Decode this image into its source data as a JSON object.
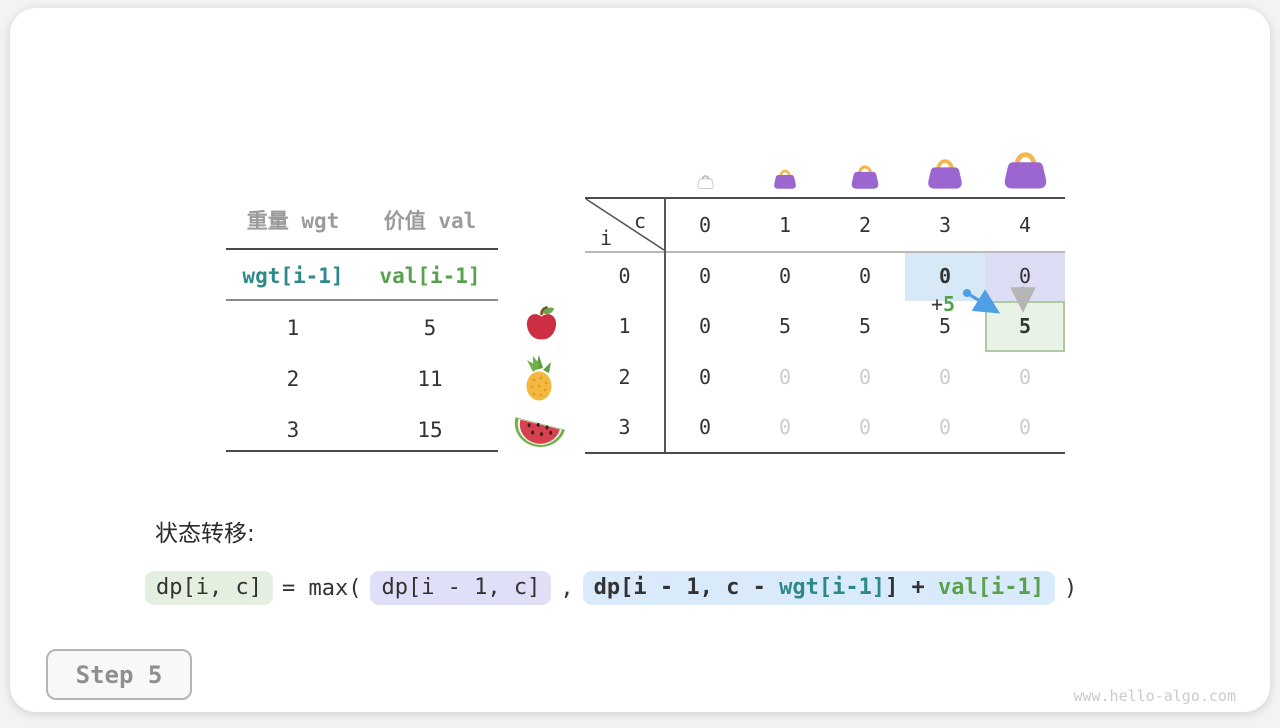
{
  "figure": {
    "step_label": "Step 5",
    "watermark": "www.hello-algo.com",
    "transition_label": "状态转移:"
  },
  "items_table": {
    "headers": [
      "重量 wgt",
      "价值 val"
    ],
    "code_row": [
      "wgt[i-1]",
      "val[i-1]"
    ],
    "rows": [
      [
        "1",
        "5"
      ],
      [
        "2",
        "11"
      ],
      [
        "3",
        "15"
      ]
    ],
    "fruit_icons": [
      "apple-icon",
      "pineapple-icon",
      "watermelon-icon"
    ]
  },
  "dp_table": {
    "corner": {
      "col_var": "c",
      "row_var": "i"
    },
    "col_headers": [
      "0",
      "1",
      "2",
      "3",
      "4"
    ],
    "row_headers": [
      "0",
      "1",
      "2",
      "3"
    ],
    "bag_icons": [
      "bag-capacity-0-icon",
      "bag-capacity-1-icon",
      "bag-capacity-2-icon",
      "bag-capacity-3-icon",
      "bag-capacity-4-icon"
    ],
    "cells": [
      [
        {
          "v": "0"
        },
        {
          "v": "0"
        },
        {
          "v": "0"
        },
        {
          "v": "0",
          "bold": true,
          "hl": "blue"
        },
        {
          "v": "0",
          "hl": "lavender"
        }
      ],
      [
        {
          "v": "0"
        },
        {
          "v": "5"
        },
        {
          "v": "5"
        },
        {
          "v": "5"
        },
        {
          "v": "5",
          "bold": true,
          "hl": "green"
        }
      ],
      [
        {
          "v": "0"
        },
        {
          "v": "0",
          "muted": true
        },
        {
          "v": "0",
          "muted": true
        },
        {
          "v": "0",
          "muted": true
        },
        {
          "v": "0",
          "muted": true
        }
      ],
      [
        {
          "v": "0"
        },
        {
          "v": "0",
          "muted": true
        },
        {
          "v": "0",
          "muted": true
        },
        {
          "v": "0",
          "muted": true
        },
        {
          "v": "0",
          "muted": true
        }
      ]
    ],
    "annotation": {
      "plus": "+",
      "value": "5"
    }
  },
  "formula": {
    "result_chip": "dp[i, c]",
    "operator": "= max(",
    "keep_chip": "dp[i - 1, c]",
    "separator": ",",
    "take_chip": {
      "prefix": "dp[i - 1, c - ",
      "wgt": "wgt[i-1]",
      "suffix": "] + ",
      "val": "val[i-1]"
    },
    "close": ")"
  },
  "colors": {
    "teal_code": "#2e8a8a",
    "green_code": "#5aa14f",
    "highlight_blue": "#d7e9f7",
    "highlight_lavender": "#dcdcf5",
    "highlight_green": "#e9f2e6",
    "highlight_green_border": "#aecaa2",
    "arrow_blue": "#4f9fe6",
    "arrow_gray": "#b5b5b5",
    "bag_purple": "#9b66cf",
    "bag_handle_orange": "#f2b64f",
    "muted_cell_text": "#cccccc",
    "gray_header_text": "#9b9b9b"
  }
}
